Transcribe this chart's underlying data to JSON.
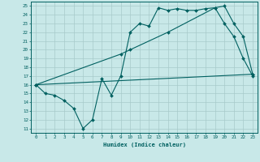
{
  "xlabel": "Humidex (Indice chaleur)",
  "bg_color": "#c8e8e8",
  "grid_color": "#a8caca",
  "line_color": "#006060",
  "xlim": [
    -0.5,
    23.5
  ],
  "ylim": [
    10.5,
    25.5
  ],
  "xticks": [
    0,
    1,
    2,
    3,
    4,
    5,
    6,
    7,
    8,
    9,
    10,
    11,
    12,
    13,
    14,
    15,
    16,
    17,
    18,
    19,
    20,
    21,
    22,
    23
  ],
  "yticks": [
    11,
    12,
    13,
    14,
    15,
    16,
    17,
    18,
    19,
    20,
    21,
    22,
    23,
    24,
    25
  ],
  "line1_x": [
    0,
    1,
    2,
    3,
    4,
    5,
    6,
    7,
    8,
    9,
    10,
    11,
    12,
    13,
    14,
    15,
    16,
    17,
    18,
    19,
    20,
    21,
    22,
    23
  ],
  "line1_y": [
    16.0,
    15.0,
    14.8,
    14.2,
    13.3,
    11.0,
    12.0,
    16.7,
    14.8,
    17.0,
    22.0,
    23.0,
    22.7,
    24.8,
    24.5,
    24.7,
    24.5,
    24.5,
    24.7,
    24.8,
    23.0,
    21.5,
    19.0,
    17.0
  ],
  "line2_x": [
    0,
    9,
    10,
    14,
    19,
    20,
    21,
    22,
    23
  ],
  "line2_y": [
    16.0,
    19.5,
    20.0,
    22.0,
    24.8,
    25.0,
    23.0,
    21.5,
    17.2
  ],
  "line3_x": [
    0,
    23
  ],
  "line3_y": [
    16.0,
    17.2
  ]
}
